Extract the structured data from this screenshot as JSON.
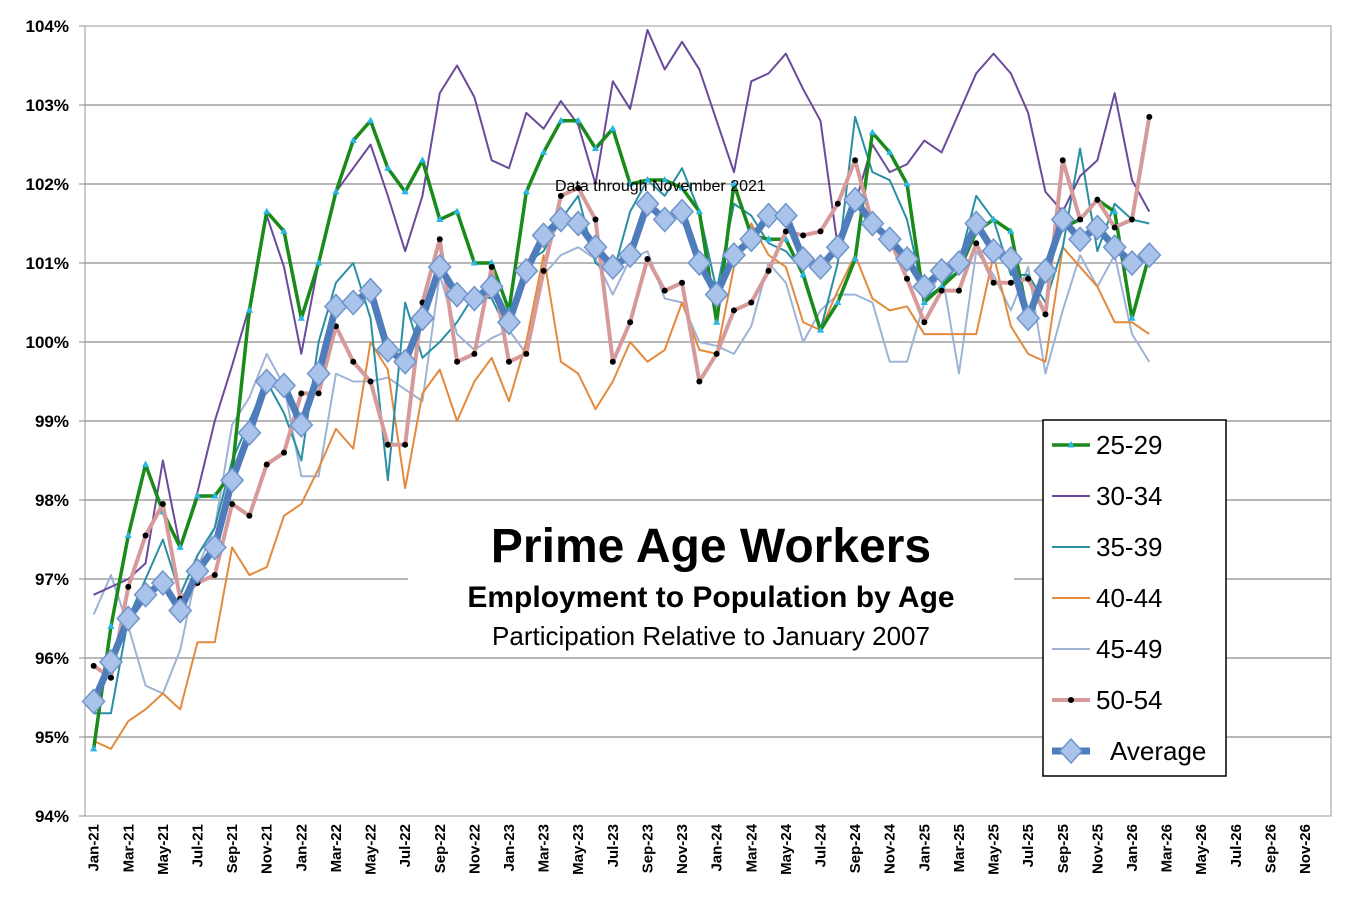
{
  "chart_data": {
    "type": "line",
    "title": "Prime Age Workers",
    "subtitle": "Employment to Population by Age",
    "subtitle2": "Participation Relative to January 2007",
    "annotation": "Data through November 2021",
    "ylim": [
      94,
      104
    ],
    "y_ticks": [
      "94%",
      "95%",
      "96%",
      "97%",
      "98%",
      "99%",
      "100%",
      "101%",
      "102%",
      "103%",
      "104%"
    ],
    "x_tick_labels": [
      "Jan-21",
      "Mar-21",
      "May-21",
      "Jul-21",
      "Sep-21",
      "Nov-21",
      "Jan-22",
      "Mar-22",
      "May-22",
      "Jul-22",
      "Sep-22",
      "Nov-22",
      "Jan-23",
      "Mar-23",
      "May-23",
      "Jul-23",
      "Sep-23",
      "Nov-23",
      "Jan-24",
      "Mar-24",
      "May-24",
      "Jul-24",
      "Sep-24",
      "Nov-24",
      "Jan-25",
      "Mar-25",
      "May-25",
      "Jul-25",
      "Sep-25",
      "Nov-25",
      "Jan-26",
      "Mar-26",
      "May-26",
      "Jul-26",
      "Sep-26",
      "Nov-26"
    ],
    "x_count": 72,
    "grid": "horizontal",
    "legend_position": "right",
    "series": [
      {
        "name": "25-29",
        "color": "#1a8a1a",
        "marker": "triangle",
        "values": [
          94.85,
          96.4,
          97.55,
          98.45,
          97.85,
          97.4,
          98.05,
          98.05,
          98.35,
          100.4,
          101.65,
          101.4,
          100.3,
          101.0,
          101.9,
          102.55,
          102.8,
          102.2,
          101.9,
          102.3,
          101.55,
          101.65,
          101.0,
          101.0,
          100.4,
          101.9,
          102.4,
          102.8,
          102.8,
          102.45,
          102.7,
          102.0,
          102.05,
          102.05,
          101.95,
          101.65,
          100.25,
          102.0,
          101.35,
          101.3,
          101.3,
          100.85,
          100.15,
          100.5,
          101.05,
          102.65,
          102.4,
          102.0,
          100.5,
          100.7,
          100.9,
          101.4,
          101.55,
          101.4,
          100.3,
          100.95,
          101.45,
          101.55,
          101.8,
          101.65,
          100.3,
          101.1
        ]
      },
      {
        "name": "30-34",
        "color": "#6a4a9a",
        "marker": "none",
        "values": [
          96.8,
          96.9,
          97.0,
          97.2,
          98.5,
          97.4,
          98.1,
          99.0,
          99.7,
          100.45,
          101.6,
          100.95,
          99.85,
          101.0,
          101.9,
          102.2,
          102.5,
          101.85,
          101.15,
          101.85,
          103.15,
          103.5,
          103.1,
          102.3,
          102.2,
          102.9,
          102.7,
          103.05,
          102.75,
          102.0,
          103.3,
          102.95,
          103.95,
          103.45,
          103.8,
          103.45,
          102.8,
          102.15,
          103.3,
          103.4,
          103.65,
          103.2,
          102.8,
          101.2,
          101.75,
          102.5,
          102.15,
          102.25,
          102.55,
          102.4,
          102.9,
          103.4,
          103.65,
          103.4,
          102.9,
          101.9,
          101.65,
          102.1,
          102.3,
          103.15,
          102.05,
          101.65
        ]
      },
      {
        "name": "35-39",
        "color": "#2a8fa3",
        "marker": "none",
        "values": [
          95.3,
          95.3,
          96.5,
          97.0,
          97.5,
          96.8,
          97.3,
          97.65,
          98.5,
          99.0,
          99.5,
          99.1,
          98.5,
          100.0,
          100.75,
          101.0,
          100.3,
          98.25,
          100.5,
          99.8,
          100.0,
          100.25,
          100.6,
          100.55,
          100.1,
          101.0,
          101.15,
          101.55,
          101.85,
          101.0,
          100.85,
          101.65,
          102.05,
          101.85,
          102.2,
          101.65,
          100.65,
          101.75,
          101.6,
          101.25,
          101.15,
          100.9,
          100.15,
          101.0,
          102.85,
          102.15,
          102.05,
          101.55,
          100.55,
          100.7,
          101.0,
          101.85,
          101.55,
          100.85,
          100.85,
          100.5,
          101.2,
          102.45,
          101.15,
          101.75,
          101.55,
          101.5
        ]
      },
      {
        "name": "40-44",
        "color": "#e38a3d",
        "marker": "none",
        "values": [
          94.95,
          94.85,
          95.2,
          95.35,
          95.55,
          95.35,
          96.2,
          96.2,
          97.4,
          97.05,
          97.15,
          97.8,
          97.95,
          98.4,
          98.9,
          98.65,
          100.0,
          99.65,
          98.15,
          99.35,
          99.65,
          99.0,
          99.5,
          99.8,
          99.25,
          100.0,
          101.1,
          99.75,
          99.6,
          99.15,
          99.5,
          100.0,
          99.75,
          99.9,
          100.5,
          99.9,
          99.85,
          100.95,
          101.5,
          101.1,
          100.95,
          100.25,
          100.15,
          100.65,
          101.1,
          100.55,
          100.4,
          100.45,
          100.1,
          100.1,
          100.1,
          100.1,
          101.1,
          100.2,
          99.85,
          99.75,
          101.2,
          100.95,
          100.7,
          100.25,
          100.25,
          100.1
        ]
      },
      {
        "name": "45-49",
        "color": "#9fb3d6",
        "marker": "none",
        "values": [
          96.55,
          97.05,
          96.4,
          95.65,
          95.55,
          96.1,
          97.15,
          97.65,
          98.95,
          99.3,
          99.85,
          99.45,
          98.3,
          98.3,
          99.6,
          99.5,
          99.5,
          99.55,
          99.4,
          99.25,
          100.85,
          100.1,
          99.9,
          100.05,
          100.15,
          99.85,
          100.85,
          101.1,
          101.2,
          101.05,
          100.6,
          101.05,
          101.15,
          100.55,
          100.5,
          100.0,
          99.95,
          99.85,
          100.2,
          101.0,
          100.75,
          100.0,
          100.4,
          100.6,
          100.6,
          100.5,
          99.75,
          99.75,
          100.5,
          100.9,
          99.6,
          101.15,
          100.85,
          100.4,
          100.95,
          99.6,
          100.4,
          101.1,
          100.7,
          101.1,
          100.1,
          99.75
        ]
      },
      {
        "name": "50-54",
        "color": "#d69a9a",
        "marker": "dot",
        "values": [
          95.9,
          95.75,
          96.9,
          97.55,
          97.95,
          96.75,
          96.95,
          97.05,
          97.95,
          97.8,
          98.45,
          98.6,
          99.35,
          99.35,
          100.2,
          99.75,
          99.5,
          98.7,
          98.7,
          100.5,
          101.3,
          99.75,
          99.85,
          100.95,
          99.75,
          99.85,
          100.9,
          101.85,
          101.95,
          101.55,
          99.75,
          100.25,
          101.05,
          100.65,
          100.75,
          99.5,
          99.85,
          100.4,
          100.5,
          100.9,
          101.4,
          101.35,
          101.4,
          101.75,
          102.3,
          101.5,
          101.3,
          100.8,
          100.25,
          100.65,
          100.65,
          101.25,
          100.75,
          100.75,
          100.8,
          100.35,
          102.3,
          101.55,
          101.8,
          101.45,
          101.55,
          102.85
        ]
      },
      {
        "name": "Average",
        "color": "#4f7cba",
        "marker": "diamond",
        "values": [
          95.45,
          95.95,
          96.5,
          96.8,
          96.95,
          96.6,
          97.1,
          97.4,
          98.25,
          98.85,
          99.5,
          99.45,
          98.95,
          99.6,
          100.45,
          100.5,
          100.65,
          99.9,
          99.75,
          100.3,
          100.95,
          100.6,
          100.55,
          100.7,
          100.25,
          100.9,
          101.35,
          101.55,
          101.5,
          101.2,
          100.95,
          101.1,
          101.75,
          101.55,
          101.65,
          101.0,
          100.6,
          101.1,
          101.3,
          101.6,
          101.6,
          101.05,
          100.95,
          101.2,
          101.8,
          101.5,
          101.3,
          101.05,
          100.7,
          100.9,
          101.0,
          101.5,
          101.15,
          101.05,
          100.3,
          100.9,
          101.55,
          101.3,
          101.45,
          101.2,
          101.0,
          101.1
        ]
      }
    ]
  }
}
